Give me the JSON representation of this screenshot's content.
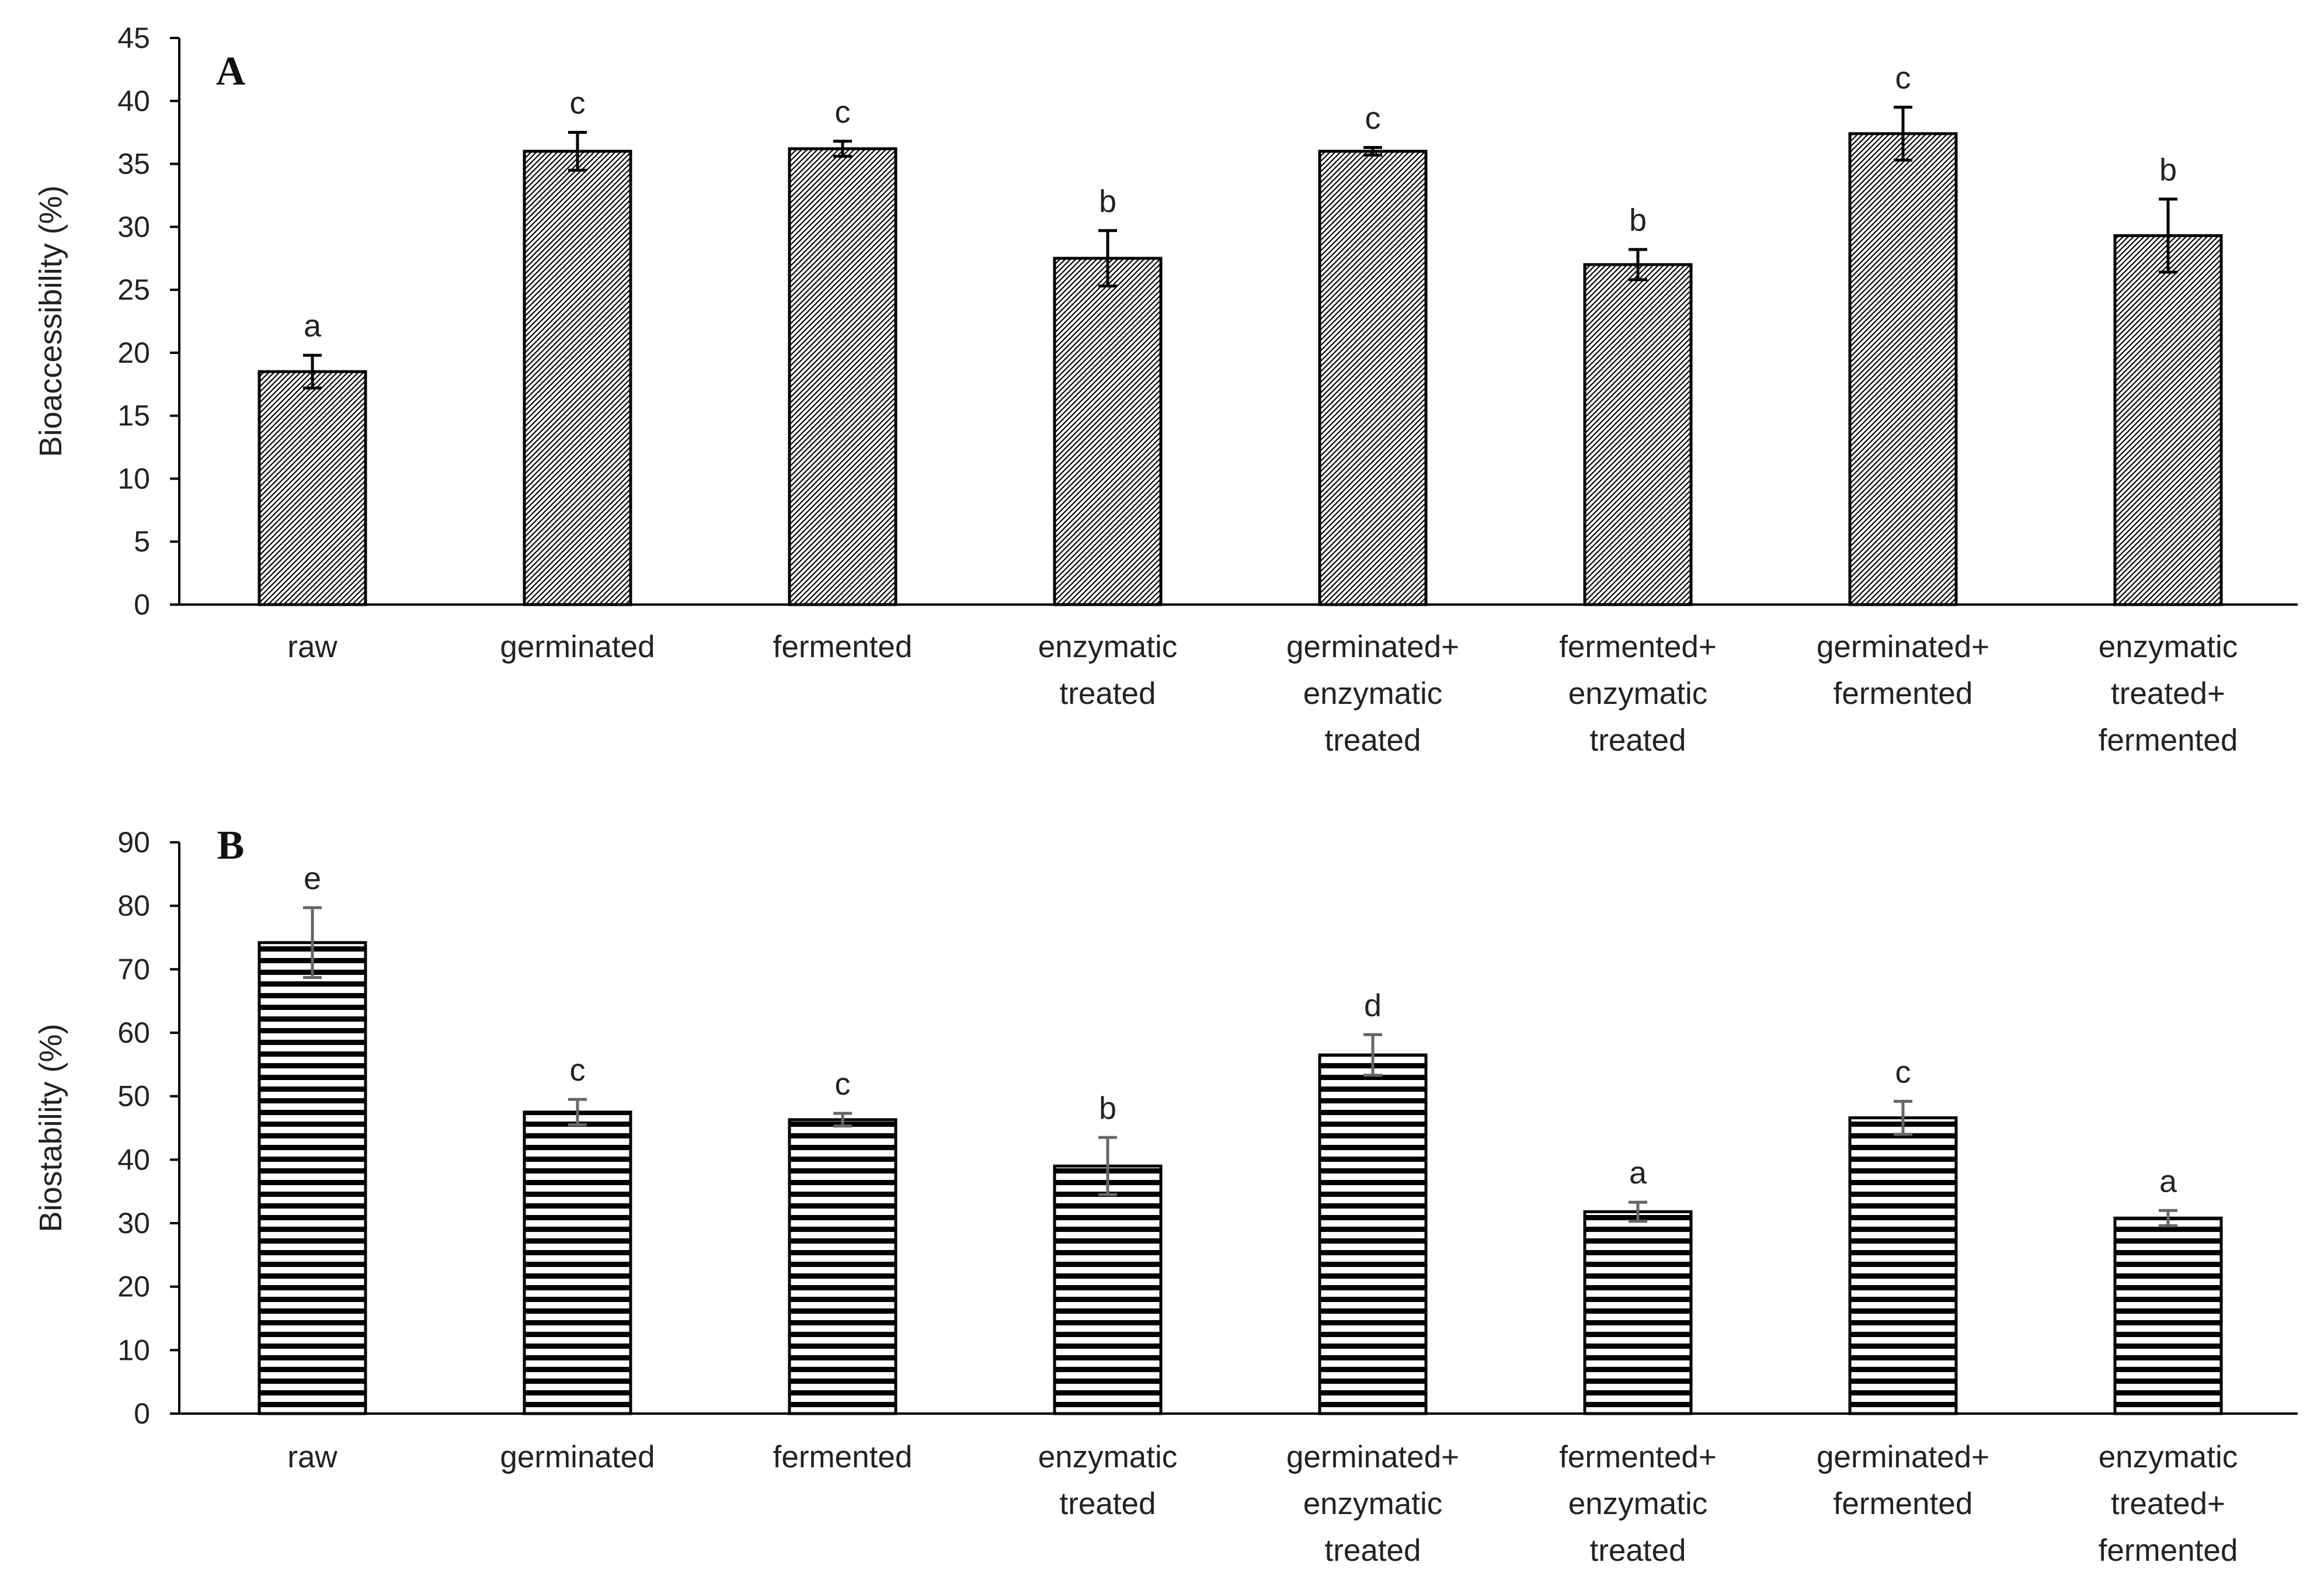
{
  "chart_data": [
    {
      "type": "bar",
      "panel_label": "A",
      "ylabel": "Bioaccessibility (%)",
      "xlabel": "",
      "ylim": [
        0,
        45
      ],
      "yticks": [
        0,
        5,
        10,
        15,
        20,
        25,
        30,
        35,
        40,
        45
      ],
      "pattern": "diagonal-hatch",
      "categories": [
        [
          "raw"
        ],
        [
          "germinated"
        ],
        [
          "fermented"
        ],
        [
          "enzymatic",
          "treated"
        ],
        [
          "germinated+",
          "enzymatic",
          "treated"
        ],
        [
          "fermented+",
          "enzymatic",
          "treated"
        ],
        [
          "germinated+",
          "fermented"
        ],
        [
          "enzymatic",
          "treated+",
          "fermented"
        ]
      ],
      "values": [
        18.5,
        36.0,
        36.2,
        27.5,
        36.0,
        27.0,
        37.4,
        29.3
      ],
      "errors": [
        1.3,
        1.5,
        0.6,
        2.2,
        0.3,
        1.2,
        2.1,
        2.9
      ],
      "significance": [
        "a",
        "c",
        "c",
        "b",
        "c",
        "b",
        "c",
        "b"
      ]
    },
    {
      "type": "bar",
      "panel_label": "B",
      "ylabel": "Biostability (%)",
      "xlabel": "",
      "ylim": [
        0,
        90
      ],
      "yticks": [
        0,
        10,
        20,
        30,
        40,
        50,
        60,
        70,
        80,
        90
      ],
      "pattern": "horizontal-stripes",
      "categories": [
        [
          "raw"
        ],
        [
          "germinated"
        ],
        [
          "fermented"
        ],
        [
          "enzymatic",
          "treated"
        ],
        [
          "germinated+",
          "enzymatic",
          "treated"
        ],
        [
          "fermented+",
          "enzymatic",
          "treated"
        ],
        [
          "germinated+",
          "fermented"
        ],
        [
          "enzymatic",
          "treated+",
          "fermented"
        ]
      ],
      "values": [
        74.2,
        47.5,
        46.3,
        39.0,
        56.5,
        31.8,
        46.6,
        30.8
      ],
      "errors": [
        5.5,
        2.0,
        1.0,
        4.5,
        3.2,
        1.5,
        2.6,
        1.2
      ],
      "significance": [
        "e",
        "c",
        "c",
        "b",
        "d",
        "a",
        "c",
        "a"
      ]
    }
  ]
}
